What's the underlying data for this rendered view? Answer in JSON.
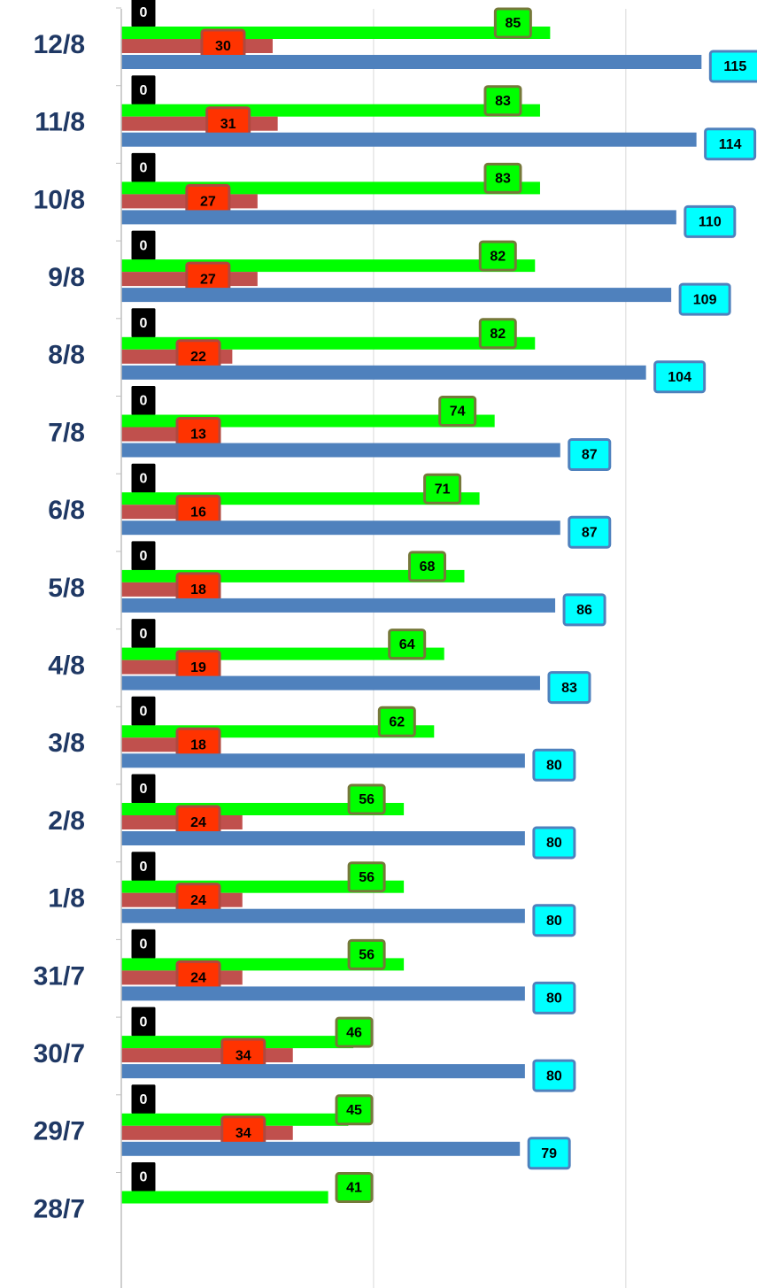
{
  "chart_data": {
    "type": "bar",
    "orientation": "horizontal",
    "categories": [
      "12/8",
      "11/8",
      "10/8",
      "9/8",
      "8/8",
      "7/8",
      "6/8",
      "5/8",
      "4/8",
      "3/8",
      "2/8",
      "1/8",
      "31/7",
      "30/7",
      "29/7",
      "28/7"
    ],
    "series": [
      {
        "color": "#000000",
        "label_fill": "#000000",
        "label_border": "#ffffff",
        "label_text": "#ffffff",
        "values": [
          0,
          0,
          0,
          0,
          0,
          0,
          0,
          0,
          0,
          0,
          0,
          0,
          0,
          0,
          0,
          0
        ]
      },
      {
        "color": "#00ff00",
        "label_fill": "#00ff00",
        "label_border": "#76783a",
        "label_text": "#000000",
        "values": [
          85,
          83,
          83,
          82,
          82,
          74,
          71,
          68,
          64,
          62,
          56,
          56,
          56,
          46,
          45,
          41
        ]
      },
      {
        "color": "#c0504d",
        "label_fill": "#ff3300",
        "label_border": "#b0483f",
        "label_text": "#000000",
        "values": [
          30,
          31,
          27,
          27,
          22,
          13,
          16,
          18,
          19,
          18,
          24,
          24,
          24,
          34,
          34,
          null
        ]
      },
      {
        "color": "#4f81bd",
        "label_fill": "#00ffff",
        "label_border": "#4f81bd",
        "label_text": "#000000",
        "values": [
          115,
          114,
          110,
          109,
          104,
          87,
          87,
          86,
          83,
          80,
          80,
          80,
          80,
          80,
          79,
          null
        ]
      }
    ],
    "xlim": [
      0,
      126
    ],
    "grid_lines": [
      50,
      100
    ],
    "grid": true
  }
}
